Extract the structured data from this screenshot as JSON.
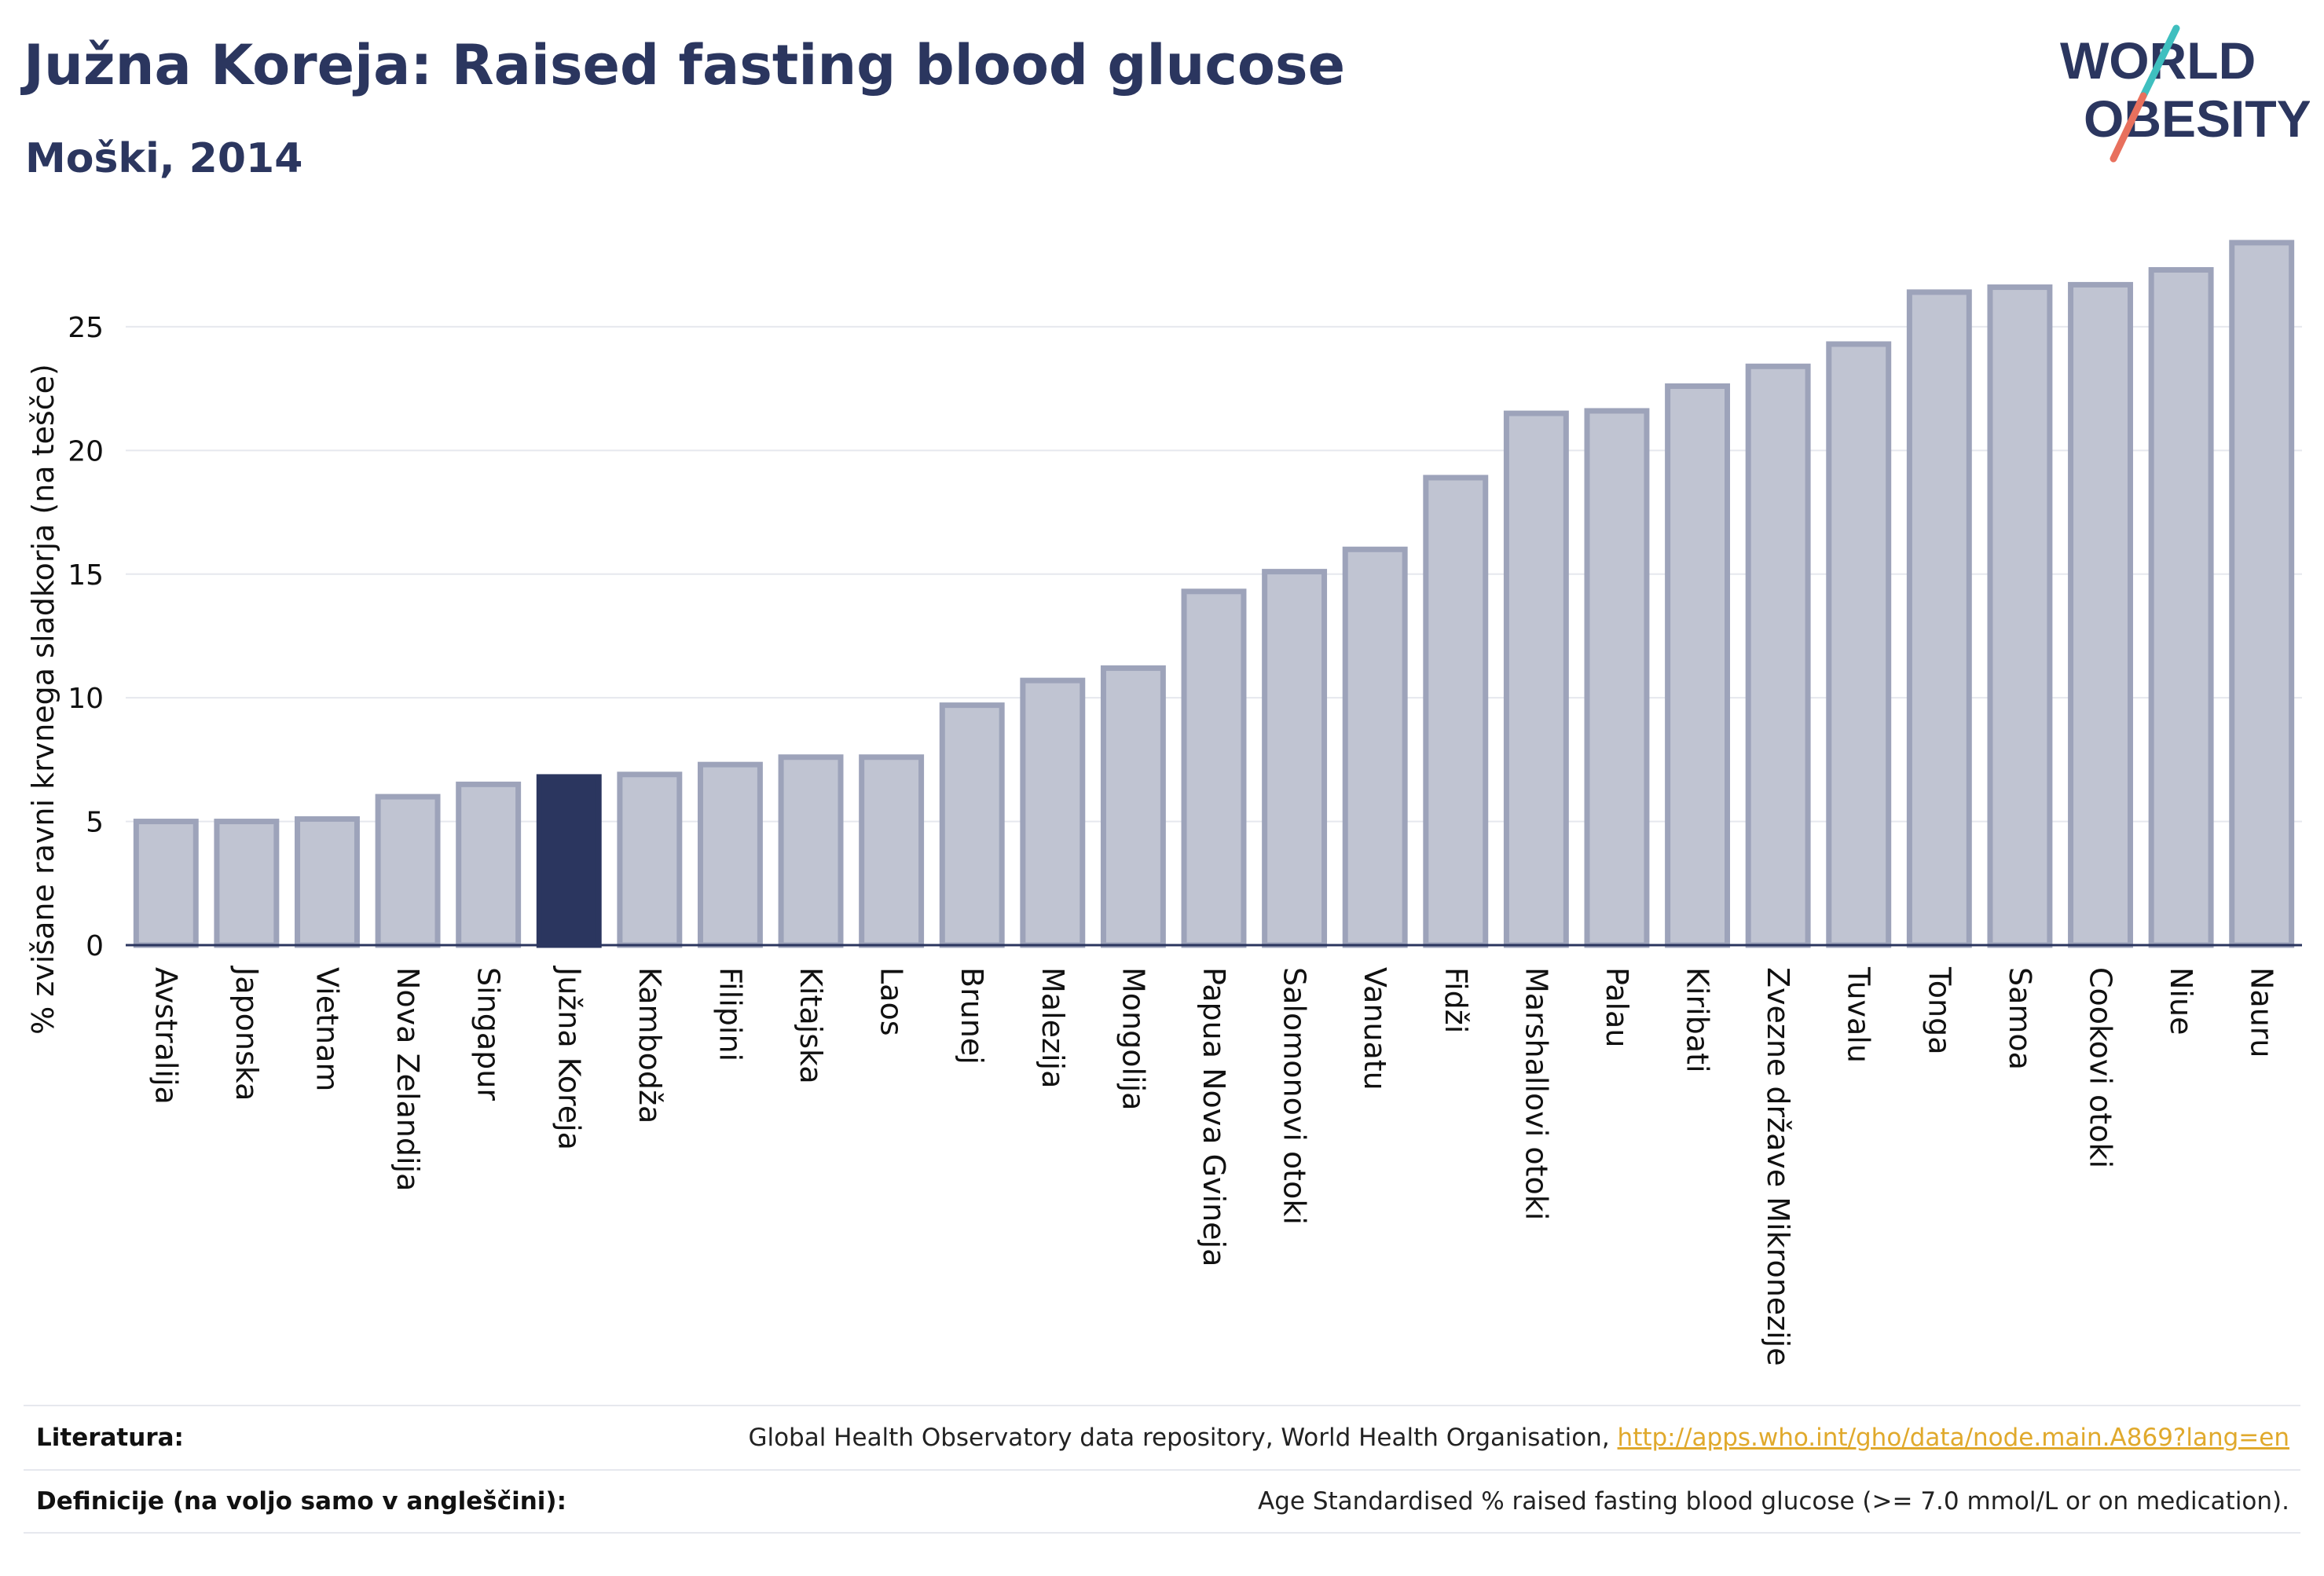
{
  "header": {
    "title": "Južna Koreja: Raised fasting blood glucose",
    "subtitle": "Moški, 2014"
  },
  "logo": {
    "line1": "WORLD",
    "line2": "OBESITY"
  },
  "chart_data": {
    "type": "bar",
    "ylabel": "% zvišane ravni krvnega sladkorja (na tešče)",
    "xlabel": "",
    "ylim": [
      0,
      29
    ],
    "yticks": [
      0,
      5,
      10,
      15,
      20,
      25
    ],
    "grid": true,
    "highlight": "Južna Koreja",
    "colors": {
      "bar": "#c0c4d2",
      "bar_border": "#9da3ba",
      "highlight": "#2b365f",
      "grid": "#e6e8ee",
      "axis": "#2b365f"
    },
    "categories": [
      "Avstralija",
      "Japonska",
      "Vietnam",
      "Nova Zelandija",
      "Singapur",
      "Južna Koreja",
      "Kambodža",
      "Filipini",
      "Kitajska",
      "Laos",
      "Brunej",
      "Malezija",
      "Mongolija",
      "Papua Nova Gvineja",
      "Salomonovi otoki",
      "Vanuatu",
      "Fidži",
      "Marshallovi otoki",
      "Palau",
      "Kiribati",
      "Zvezne države Mikronezije",
      "Tuvalu",
      "Tonga",
      "Samoa",
      "Cookovi otoki",
      "Niue",
      "Nauru"
    ],
    "values": [
      5.0,
      5.0,
      5.1,
      6.0,
      6.5,
      6.8,
      6.9,
      7.3,
      7.6,
      7.6,
      9.7,
      10.7,
      11.2,
      14.3,
      15.1,
      16.0,
      18.9,
      21.5,
      21.6,
      22.6,
      23.4,
      24.3,
      26.4,
      26.6,
      26.7,
      27.3,
      28.4
    ]
  },
  "footer": {
    "literature_label": "Literatura:",
    "literature_text": "Global Health Observatory data repository, World Health Organisation,",
    "literature_link": "http://apps.who.int/gho/data/node.main.A869?lang=en",
    "definitions_label": "Definicije (na voljo samo v angleščini):",
    "definitions_text": "Age Standardised % raised fasting blood glucose (>= 7.0 mmol/L or on medication)."
  }
}
